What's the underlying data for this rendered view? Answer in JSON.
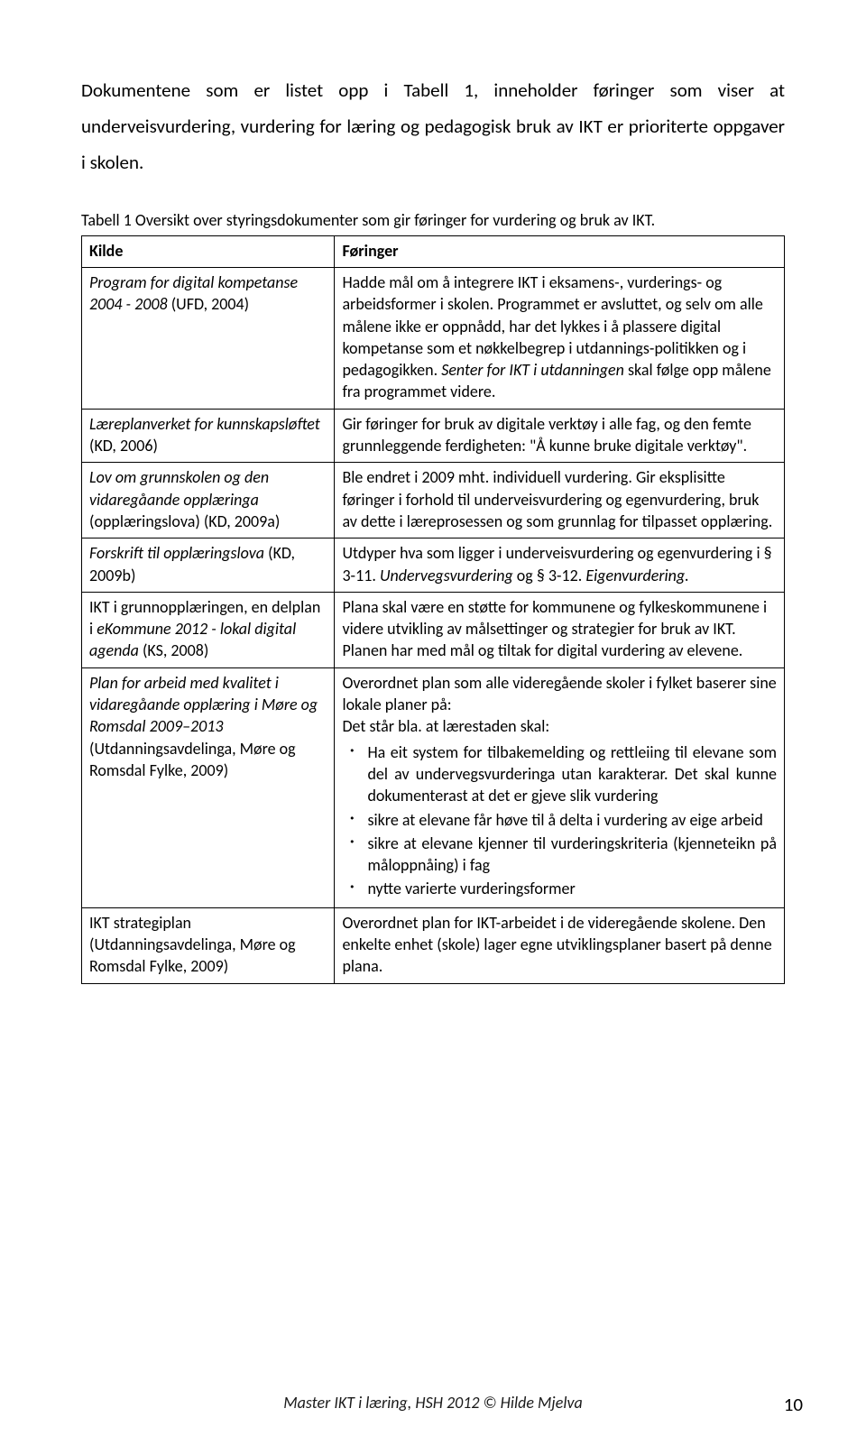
{
  "intro": "Dokumentene som er listet opp i Tabell 1, inneholder føringer som viser at underveisvurdering, vurdering for læring og pedagogisk bruk av IKT er prioriterte oppgaver i skolen.",
  "caption": "Tabell 1 Oversikt over styringsdokumenter som gir føringer for vurdering og bruk av IKT.",
  "headers": {
    "kilde": "Kilde",
    "foringer": "Føringer"
  },
  "rows": [
    {
      "kilde_html": "<span class=\"ital\">Program for digital kompetanse 2004 - 2008</span> (UFD, 2004)",
      "for_html": "Hadde mål om å integrere IKT i eksamens-, vurderings- og arbeidsformer i skolen. Programmet er avsluttet, og selv om alle målene ikke er oppnådd, har det lykkes i å plassere digital kompetanse som et nøkkelbegrep i utdannings-politikken og i pedagogikken. <span class=\"ital\">Senter for IKT i utdanningen</span> skal følge opp målene fra programmet videre."
    },
    {
      "kilde_html": "<span class=\"ital\">Læreplanverket for kunnskapsløftet</span> (KD, 2006)",
      "for_html": "Gir føringer for bruk av digitale verktøy i alle fag, og den femte grunnleggende ferdigheten: \"Å kunne bruke digitale verktøy\"."
    },
    {
      "kilde_html": "<span class=\"ital\">Lov om grunnskolen og den vidaregåande opplæringa</span> (opplæringslova) (KD, 2009a)",
      "for_html": "Ble endret i 2009 mht. individuell vurdering. Gir eksplisitte føringer i forhold til underveisvurdering og egenvurdering, bruk av dette i læreprosessen og som grunnlag for tilpasset opplæring."
    },
    {
      "kilde_html": "<span class=\"ital\">Forskrift til opplæringslova</span> (KD, 2009b)",
      "for_html": "Utdyper hva som ligger i underveisvurdering og egenvurdering i § 3-11. <span class=\"ital\">Undervegsvurdering</span> og § 3-12. <span class=\"ital\">Eigenvurdering.</span>"
    },
    {
      "kilde_html": "IKT i grunnopplæringen, en delplan i <span class=\"ital\">eKommune 2012 - lokal digital agenda</span> (KS, 2008)",
      "for_html": "Plana skal være en støtte for kommunene og fylkeskommunene i videre utvikling av målsettinger og strategier for bruk av IKT. Planen har med mål og tiltak for digital vurdering av elevene."
    },
    {
      "kilde_html": "<span class=\"ital\">Plan for arbeid med kvalitet i vidaregåande opplæring i Møre og Romsdal 2009–2013</span> (Utdanningsavdelinga, Møre og Romsdal Fylke, 2009)",
      "for_html": "Overordnet plan som alle videregående skoler i fylket baserer sine lokale planer på:<br>Det står bla. at lærestaden skal:",
      "bullets": [
        "Ha eit system for tilbakemelding og rettleiing til elevane som del av undervegsvurderinga utan karakterar. Det skal kunne dokumenterast at det er gjeve slik vurdering",
        "sikre at elevane får høve til å delta i vurdering av eige arbeid",
        "sikre at elevane kjenner til vurderingskriteria (kjenneteikn på måloppnåing) i fag",
        "nytte varierte vurderingsformer"
      ]
    },
    {
      "kilde_html": "IKT strategiplan (Utdanningsavdelinga, Møre og Romsdal Fylke, 2009)",
      "for_html": "Overordnet plan for IKT-arbeidet i de videregående skolene. Den enkelte enhet (skole) lager egne utviklingsplaner basert på denne plana."
    }
  ],
  "footer": "Master IKT i læring, HSH 2012 © Hilde Mjelva",
  "page_number": "10"
}
